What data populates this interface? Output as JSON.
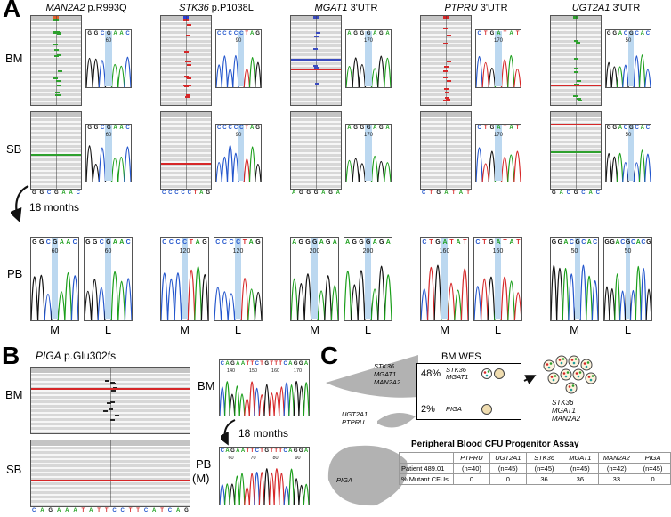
{
  "panelA": {
    "label": "A",
    "row_labels": {
      "bm": "BM",
      "sb": "SB"
    },
    "pb_label": "PB",
    "arrow_label": "18 months",
    "pb_labels": [
      "M",
      "L"
    ],
    "columns": [
      {
        "gene": "MAN2A2",
        "variant": "p.R993Q",
        "ref_seq": "GGCGAAC",
        "variant_color": "#2da02d",
        "cov_colors": [
          "#e2622b",
          "#2da02d"
        ],
        "bm_ticks": 16,
        "sb_ticks": 0,
        "bm_hlines": [],
        "sb_hlines": [
          "#2da02d"
        ],
        "bm_trace": {
          "seq": "GGCGAAC",
          "highlight": 3,
          "pos": "60"
        },
        "sb_trace": {
          "seq": "GGCGAAC",
          "highlight": 3,
          "pos": "60"
        },
        "pb_m_trace": {
          "seq": "GGCGAAC",
          "highlight": 3,
          "pos": "60"
        },
        "pb_l_trace": {
          "seq": "GGCGAAC",
          "highlight": 3,
          "pos": "60"
        }
      },
      {
        "gene": "STK36",
        "variant": "p.P1038L",
        "ref_seq": "CCCCCTAG",
        "variant_color": "#d62728",
        "cov_colors": [
          "#2b3fd6",
          "#d62728"
        ],
        "bm_ticks": 14,
        "sb_ticks": 0,
        "bm_hlines": [],
        "sb_hlines": [
          "#d62728"
        ],
        "bm_trace": {
          "seq": "CCCCCTAG",
          "highlight": 4,
          "pos": "90"
        },
        "sb_trace": {
          "seq": "CCCCCTAG",
          "highlight": 4,
          "pos": "90"
        },
        "pb_m_trace": {
          "seq": "CCCCTAG",
          "highlight": 3,
          "pos": "120"
        },
        "pb_l_trace": {
          "seq": "CCCCTAG",
          "highlight": 3,
          "pos": "120"
        }
      },
      {
        "gene": "MGAT1",
        "variant": "3'UTR",
        "ref_seq": "AGGGAGA",
        "variant_color": "#3b4cc0",
        "cov_colors": [
          "#3b4cc0"
        ],
        "bm_ticks": 6,
        "sb_ticks": 0,
        "bm_hlines": [
          "#3b4cc0",
          "#d62728"
        ],
        "sb_hlines": [],
        "bm_trace": {
          "seq": "AGGGAGA",
          "highlight": 3,
          "pos": "170"
        },
        "sb_trace": {
          "seq": "AGGGAGA",
          "highlight": 3,
          "pos": "170"
        },
        "pb_m_trace": {
          "seq": "AGGGAGA",
          "highlight": 3,
          "pos": "200"
        },
        "pb_l_trace": {
          "seq": "AGGGAGA",
          "highlight": 3,
          "pos": "200"
        }
      },
      {
        "gene": "PTPRU",
        "variant": "3'UTR",
        "ref_seq": "CTGATAT",
        "variant_color": "#d62728",
        "cov_colors": [
          "#d62728"
        ],
        "bm_ticks": 13,
        "sb_ticks": 0,
        "bm_hlines": [],
        "sb_hlines": [],
        "bm_trace": {
          "seq": "CTGATAT",
          "highlight": 3,
          "pos": "170"
        },
        "sb_trace": {
          "seq": "CTGATAT",
          "highlight": 3,
          "pos": "170"
        },
        "pb_m_trace": {
          "seq": "CTGATAT",
          "highlight": 3,
          "pos": "160"
        },
        "pb_l_trace": {
          "seq": "CTGATAT",
          "highlight": 3,
          "pos": "160"
        }
      },
      {
        "gene": "UGT2A1",
        "variant": "3'UTR",
        "ref_seq": "GACGCAC",
        "variant_color": "#2da02d",
        "cov_colors": [
          "#2da02d"
        ],
        "bm_ticks": 12,
        "sb_ticks": 0,
        "bm_hlines": [
          "#d62728"
        ],
        "sb_hlines": [
          "#d62728",
          "#2da02d"
        ],
        "bm_trace": {
          "seq": "GGACGCAC",
          "highlight": 4,
          "pos": "50"
        },
        "sb_trace": {
          "seq": "GGACGCAC",
          "highlight": 4,
          "pos": "50"
        },
        "pb_m_trace": {
          "seq": "GGACGCAC",
          "highlight": 4,
          "pos": "50"
        },
        "pb_l_trace": {
          "seq": "GGACGCACG",
          "highlight": 4,
          "pos": "50"
        }
      }
    ]
  },
  "panelB": {
    "label": "B",
    "gene": "PIGA",
    "variant": "p.Glu302fs",
    "row_labels": {
      "bm": "BM",
      "sb": "SB"
    },
    "bm_right_label": "BM",
    "arrow_label": "18 months",
    "pb_label": "PB",
    "pb_sub_label": "(M)",
    "ref_seq": "CAGAAATATTCCTTCATCAG",
    "variant_color": "#222222",
    "bm_ticks": 12,
    "bm_hlines": [
      "#d62728"
    ],
    "sb_hlines": [
      "#d62728"
    ],
    "bm_trace": {
      "seq": "CAGAATTCTGTTTCAGGA",
      "positions": [
        "140",
        "150",
        "160",
        "170"
      ]
    },
    "pb_trace": {
      "seq": "CAGAATTCTGTTTCAGGA",
      "positions": [
        "60",
        "70",
        "80",
        "90"
      ]
    }
  },
  "panelC": {
    "label": "C",
    "wes_title": "BM WES",
    "clones": [
      {
        "pct": "48%",
        "genes": [
          "STK36",
          "MGAT1"
        ],
        "circles": 2
      },
      {
        "pct": "2%",
        "genes": [
          "PIGA"
        ],
        "circles": 1
      }
    ],
    "cluster_genes": [
      "STK36",
      "MGAT1",
      "MAN2A2"
    ],
    "fish_labels": [
      {
        "lines": [
          "STK36",
          "MGAT1",
          "MAN2A2"
        ]
      },
      {
        "lines": [
          "UGT2A1",
          "PTPRU"
        ]
      },
      {
        "lines": [
          "PIGA"
        ]
      }
    ],
    "dot_colors": [
      "#d62728",
      "#2da02d",
      "#1f9f9f"
    ],
    "assay": {
      "title": "Peripheral Blood CFU Progenitor Assay",
      "genes": [
        "PTPRU",
        "UGT2A1",
        "STK36",
        "MGAT1",
        "MAN2A2",
        "PIGA"
      ],
      "patient_label": "Patient 489.01",
      "n_values": [
        "(n=40)",
        "(n=45)",
        "(n=45)",
        "(n=45)",
        "(n=42)",
        "(n=45)"
      ],
      "mutant_label": "% Mutant CFUs",
      "mutant_values": [
        "0",
        "0",
        "36",
        "36",
        "33",
        "0"
      ]
    }
  }
}
